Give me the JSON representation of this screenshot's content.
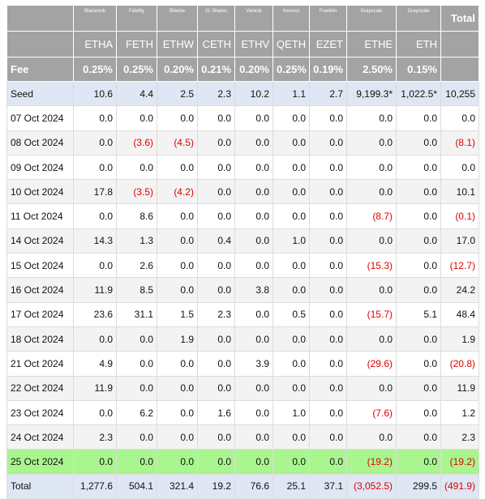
{
  "header": {
    "issuers": [
      "Blackrock",
      "Fidelity",
      "Bitwise",
      "21 Shares",
      "Vaneck",
      "Invesco",
      "Franklin",
      "Grayscale",
      "Grayscale"
    ],
    "total_label": "Total",
    "tickers": [
      "ETHA",
      "FETH",
      "ETHW",
      "CETH",
      "ETHV",
      "QETH",
      "EZET",
      "ETHE",
      "ETH"
    ],
    "fee_label": "Fee",
    "fees": [
      "0.25%",
      "0.25%",
      "0.20%",
      "0.21%",
      "0.20%",
      "0.25%",
      "0.19%",
      "2.50%",
      "0.15%"
    ]
  },
  "table": {
    "rows": [
      [
        "Seed",
        "10.6",
        "4.4",
        "2.5",
        "2.3",
        "10.2",
        "1.1",
        "2.7",
        "9,199.3*",
        "1,022.5*",
        "10,255"
      ],
      [
        "07 Oct 2024",
        "0.0",
        "0.0",
        "0.0",
        "0.0",
        "0.0",
        "0.0",
        "0.0",
        "0.0",
        "0.0",
        "0.0"
      ],
      [
        "08 Oct 2024",
        "0.0",
        "(3.6)",
        "(4.5)",
        "0.0",
        "0.0",
        "0.0",
        "0.0",
        "0.0",
        "0.0",
        "(8.1)"
      ],
      [
        "09 Oct 2024",
        "0.0",
        "0.0",
        "0.0",
        "0.0",
        "0.0",
        "0.0",
        "0.0",
        "0.0",
        "0.0",
        "0.0"
      ],
      [
        "10 Oct 2024",
        "17.8",
        "(3.5)",
        "(4.2)",
        "0.0",
        "0.0",
        "0.0",
        "0.0",
        "0.0",
        "0.0",
        "10.1"
      ],
      [
        "11 Oct 2024",
        "0.0",
        "8.6",
        "0.0",
        "0.0",
        "0.0",
        "0.0",
        "0.0",
        "(8.7)",
        "0.0",
        "(0.1)"
      ],
      [
        "14 Oct 2024",
        "14.3",
        "1.3",
        "0.0",
        "0.4",
        "0.0",
        "1.0",
        "0.0",
        "0.0",
        "0.0",
        "17.0"
      ],
      [
        "15 Oct 2024",
        "0.0",
        "2.6",
        "0.0",
        "0.0",
        "0.0",
        "0.0",
        "0.0",
        "(15.3)",
        "0.0",
        "(12.7)"
      ],
      [
        "16 Oct 2024",
        "11.9",
        "8.5",
        "0.0",
        "0.0",
        "3.8",
        "0.0",
        "0.0",
        "0.0",
        "0.0",
        "24.2"
      ],
      [
        "17 Oct 2024",
        "23.6",
        "31.1",
        "1.5",
        "2.3",
        "0.0",
        "0.5",
        "0.0",
        "(15.7)",
        "5.1",
        "48.4"
      ],
      [
        "18 Oct 2024",
        "0.0",
        "0.0",
        "1.9",
        "0.0",
        "0.0",
        "0.0",
        "0.0",
        "0.0",
        "0.0",
        "1.9"
      ],
      [
        "21 Oct 2024",
        "4.9",
        "0.0",
        "0.0",
        "0.0",
        "3.9",
        "0.0",
        "0.0",
        "(29.6)",
        "0.0",
        "(20.8)"
      ],
      [
        "22 Oct 2024",
        "11.9",
        "0.0",
        "0.0",
        "0.0",
        "0.0",
        "0.0",
        "0.0",
        "0.0",
        "0.0",
        "11.9"
      ],
      [
        "23 Oct 2024",
        "0.0",
        "6.2",
        "0.0",
        "1.6",
        "0.0",
        "1.0",
        "0.0",
        "(7.6)",
        "0.0",
        "1.2"
      ],
      [
        "24 Oct 2024",
        "2.3",
        "0.0",
        "0.0",
        "0.0",
        "0.0",
        "0.0",
        "0.0",
        "0.0",
        "0.0",
        "2.3"
      ],
      [
        "25 Oct 2024",
        "0.0",
        "0.0",
        "0.0",
        "0.0",
        "0.0",
        "0.0",
        "0.0",
        "(19.2)",
        "0.0",
        "(19.2)"
      ],
      [
        "Total",
        "1,277.6",
        "504.1",
        "321.4",
        "19.2",
        "76.6",
        "25.1",
        "37.1",
        "(3,052.5)",
        "299.5",
        "(491.9)"
      ]
    ]
  }
}
